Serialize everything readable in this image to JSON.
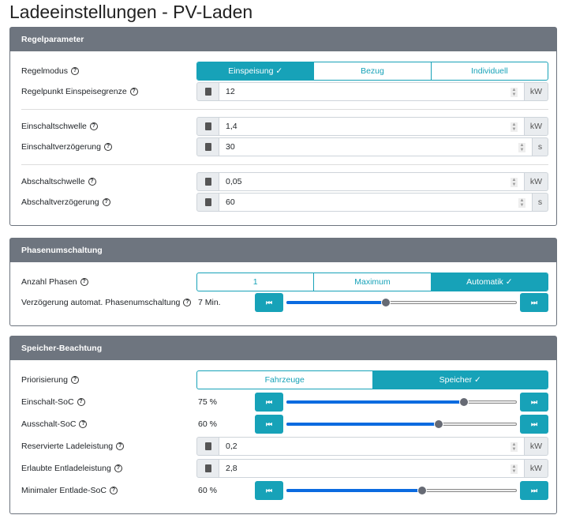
{
  "title": "Ladeeinstellungen - PV-Laden",
  "colors": {
    "accent": "#17a2b8",
    "header": "#6e757f",
    "slider_fill": "#0b6be0"
  },
  "cards": [
    {
      "title": "Regelparameter",
      "rows": [
        {
          "type": "toggle",
          "label": "Regelmodus",
          "options": [
            "Einspeisung ✓",
            "Bezug",
            "Individuell"
          ],
          "selected": 0
        },
        {
          "type": "input",
          "label": "Regelpunkt Einspeisegrenze",
          "value": "12",
          "unit": "kW"
        },
        {
          "type": "divider"
        },
        {
          "type": "input",
          "label": "Einschaltschwelle",
          "value": "1,4",
          "unit": "kW"
        },
        {
          "type": "input",
          "label": "Einschaltverzögerung",
          "value": "30",
          "unit": "s"
        },
        {
          "type": "divider"
        },
        {
          "type": "input",
          "label": "Abschaltschwelle",
          "value": "0,05",
          "unit": "kW"
        },
        {
          "type": "input",
          "label": "Abschaltverzögerung",
          "value": "60",
          "unit": "s"
        }
      ]
    },
    {
      "title": "Phasenumschaltung",
      "rows": [
        {
          "type": "toggle",
          "label": "Anzahl Phasen",
          "options": [
            "1",
            "Maximum",
            "Automatik ✓"
          ],
          "selected": 2
        },
        {
          "type": "slider",
          "label": "Verzögerung automat. Phasenumschaltung",
          "value": "7 Min.",
          "position": 0.43
        }
      ]
    },
    {
      "title": "Speicher-Beachtung",
      "rows": [
        {
          "type": "toggle",
          "label": "Priorisierung",
          "options": [
            "Fahrzeuge",
            "Speicher ✓"
          ],
          "selected": 1
        },
        {
          "type": "slider",
          "label": "Einschalt-SoC",
          "value": "75 %",
          "position": 0.77
        },
        {
          "type": "slider",
          "label": "Ausschalt-SoC",
          "value": "60 %",
          "position": 0.66
        },
        {
          "type": "input",
          "label": "Reservierte Ladeleistung",
          "value": "0,2",
          "unit": "kW"
        },
        {
          "type": "input",
          "label": "Erlaubte Entladeleistung",
          "value": "2,8",
          "unit": "kW"
        },
        {
          "type": "slider",
          "label": "Minimaler Entlade-SoC",
          "value": "60 %",
          "position": 0.59
        }
      ]
    }
  ],
  "icons": {
    "help": "?",
    "calculator": "calculator-icon",
    "step_back": "⏮",
    "step_fwd": "⏭"
  }
}
